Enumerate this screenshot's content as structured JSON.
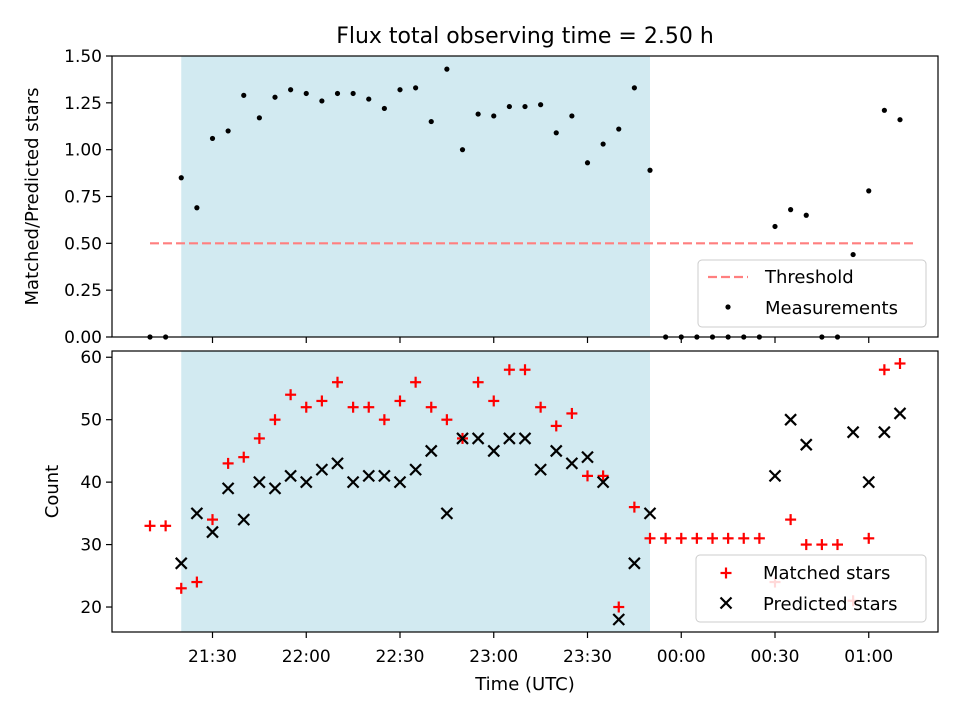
{
  "figure": {
    "title": "Flux total observing time = 2.50 h",
    "xlabel": "Time (UTC)"
  },
  "x_ticks": [
    "21:30",
    "22:00",
    "22:30",
    "23:00",
    "23:30",
    "00:00",
    "00:30",
    "01:00"
  ],
  "chart_data": [
    {
      "type": "scatter",
      "name": "ratio-panel",
      "ylabel": "Matched/Predicted stars",
      "ylim": [
        0,
        1.5
      ],
      "xlim_minutes": [
        1270,
        1528
      ],
      "x_axis_note": "x values are minutes after 00:00 UTC of the first day",
      "yticks": [
        0,
        0.25,
        0.5,
        0.75,
        1.0,
        1.25,
        1.5
      ],
      "ytick_labels": [
        "0.00",
        "0.25",
        "0.50",
        "0.75",
        "1.00",
        "1.25",
        "1.50"
      ],
      "shaded_region_minutes": [
        1280,
        1430
      ],
      "shaded_color": "#add8e6",
      "threshold": {
        "label": "Threshold",
        "value": 0.5,
        "x_range_minutes": [
          1270,
          1515
        ],
        "color": "#ff7f7f"
      },
      "legend": {
        "placement": "lower right",
        "entries": [
          "Threshold",
          "Measurements"
        ]
      },
      "series": [
        {
          "name": "Measurements",
          "color": "#000000",
          "x": [
            1270,
            1275,
            1280,
            1285,
            1290,
            1295,
            1300,
            1305,
            1310,
            1315,
            1320,
            1325,
            1330,
            1335,
            1340,
            1345,
            1350,
            1355,
            1360,
            1365,
            1370,
            1375,
            1380,
            1385,
            1390,
            1395,
            1400,
            1405,
            1410,
            1415,
            1420,
            1425,
            1430,
            1435,
            1440,
            1445,
            1450,
            1455,
            1460,
            1465,
            1470,
            1475,
            1480,
            1485,
            1490,
            1495,
            1500,
            1505,
            1510
          ],
          "y": [
            0,
            0,
            0.85,
            0.69,
            1.06,
            1.1,
            1.29,
            1.17,
            1.28,
            1.32,
            1.3,
            1.26,
            1.3,
            1.3,
            1.27,
            1.22,
            1.32,
            1.33,
            1.15,
            1.43,
            1.0,
            1.19,
            1.18,
            1.23,
            1.23,
            1.24,
            1.09,
            1.18,
            0.93,
            1.03,
            1.11,
            1.33,
            0.89,
            0,
            0,
            0,
            0,
            0,
            0,
            0,
            0.59,
            0.68,
            0.65,
            0,
            0,
            0.44,
            0.78,
            1.21,
            1.16
          ]
        }
      ]
    },
    {
      "type": "scatter",
      "name": "count-panel",
      "ylabel": "Count",
      "ylim": [
        16,
        61
      ],
      "xlim_minutes": [
        1270,
        1528
      ],
      "yticks": [
        20,
        30,
        40,
        50,
        60
      ],
      "ytick_labels": [
        "20",
        "30",
        "40",
        "50",
        "60"
      ],
      "shaded_region_minutes": [
        1280,
        1430
      ],
      "shaded_color": "#add8e6",
      "legend": {
        "placement": "lower right",
        "entries": [
          "Matched stars",
          "Predicted stars"
        ]
      },
      "series": [
        {
          "name": "Matched stars",
          "marker": "plus",
          "color": "#ff0000",
          "x": [
            1270,
            1275,
            1280,
            1285,
            1290,
            1295,
            1300,
            1305,
            1310,
            1315,
            1320,
            1325,
            1330,
            1335,
            1340,
            1345,
            1350,
            1355,
            1360,
            1365,
            1370,
            1375,
            1380,
            1385,
            1390,
            1395,
            1400,
            1405,
            1410,
            1415,
            1420,
            1425,
            1430,
            1435,
            1440,
            1445,
            1450,
            1455,
            1460,
            1465,
            1470,
            1475,
            1480,
            1485,
            1490,
            1495,
            1500,
            1505,
            1510
          ],
          "y": [
            33,
            33,
            23,
            24,
            34,
            43,
            44,
            47,
            50,
            54,
            52,
            53,
            56,
            52,
            52,
            50,
            53,
            56,
            52,
            50,
            47,
            56,
            53,
            58,
            58,
            52,
            49,
            51,
            41,
            41,
            20,
            36,
            31,
            31,
            31,
            31,
            31,
            31,
            31,
            31,
            24,
            34,
            30,
            30,
            30,
            21,
            31,
            58,
            59
          ]
        },
        {
          "name": "Predicted stars",
          "marker": "x",
          "color": "#000000",
          "x": [
            1280,
            1285,
            1290,
            1295,
            1300,
            1305,
            1310,
            1315,
            1320,
            1325,
            1330,
            1335,
            1340,
            1345,
            1350,
            1355,
            1360,
            1365,
            1370,
            1375,
            1380,
            1385,
            1390,
            1395,
            1400,
            1405,
            1410,
            1415,
            1420,
            1425,
            1430,
            1470,
            1475,
            1480,
            1495,
            1500,
            1505,
            1510
          ],
          "y": [
            27,
            35,
            32,
            39,
            34,
            40,
            39,
            41,
            40,
            42,
            43,
            40,
            41,
            41,
            40,
            42,
            45,
            35,
            47,
            47,
            45,
            47,
            47,
            42,
            45,
            43,
            44,
            40,
            18,
            27,
            35,
            41,
            50,
            46,
            48,
            40,
            48,
            51
          ]
        }
      ]
    }
  ]
}
